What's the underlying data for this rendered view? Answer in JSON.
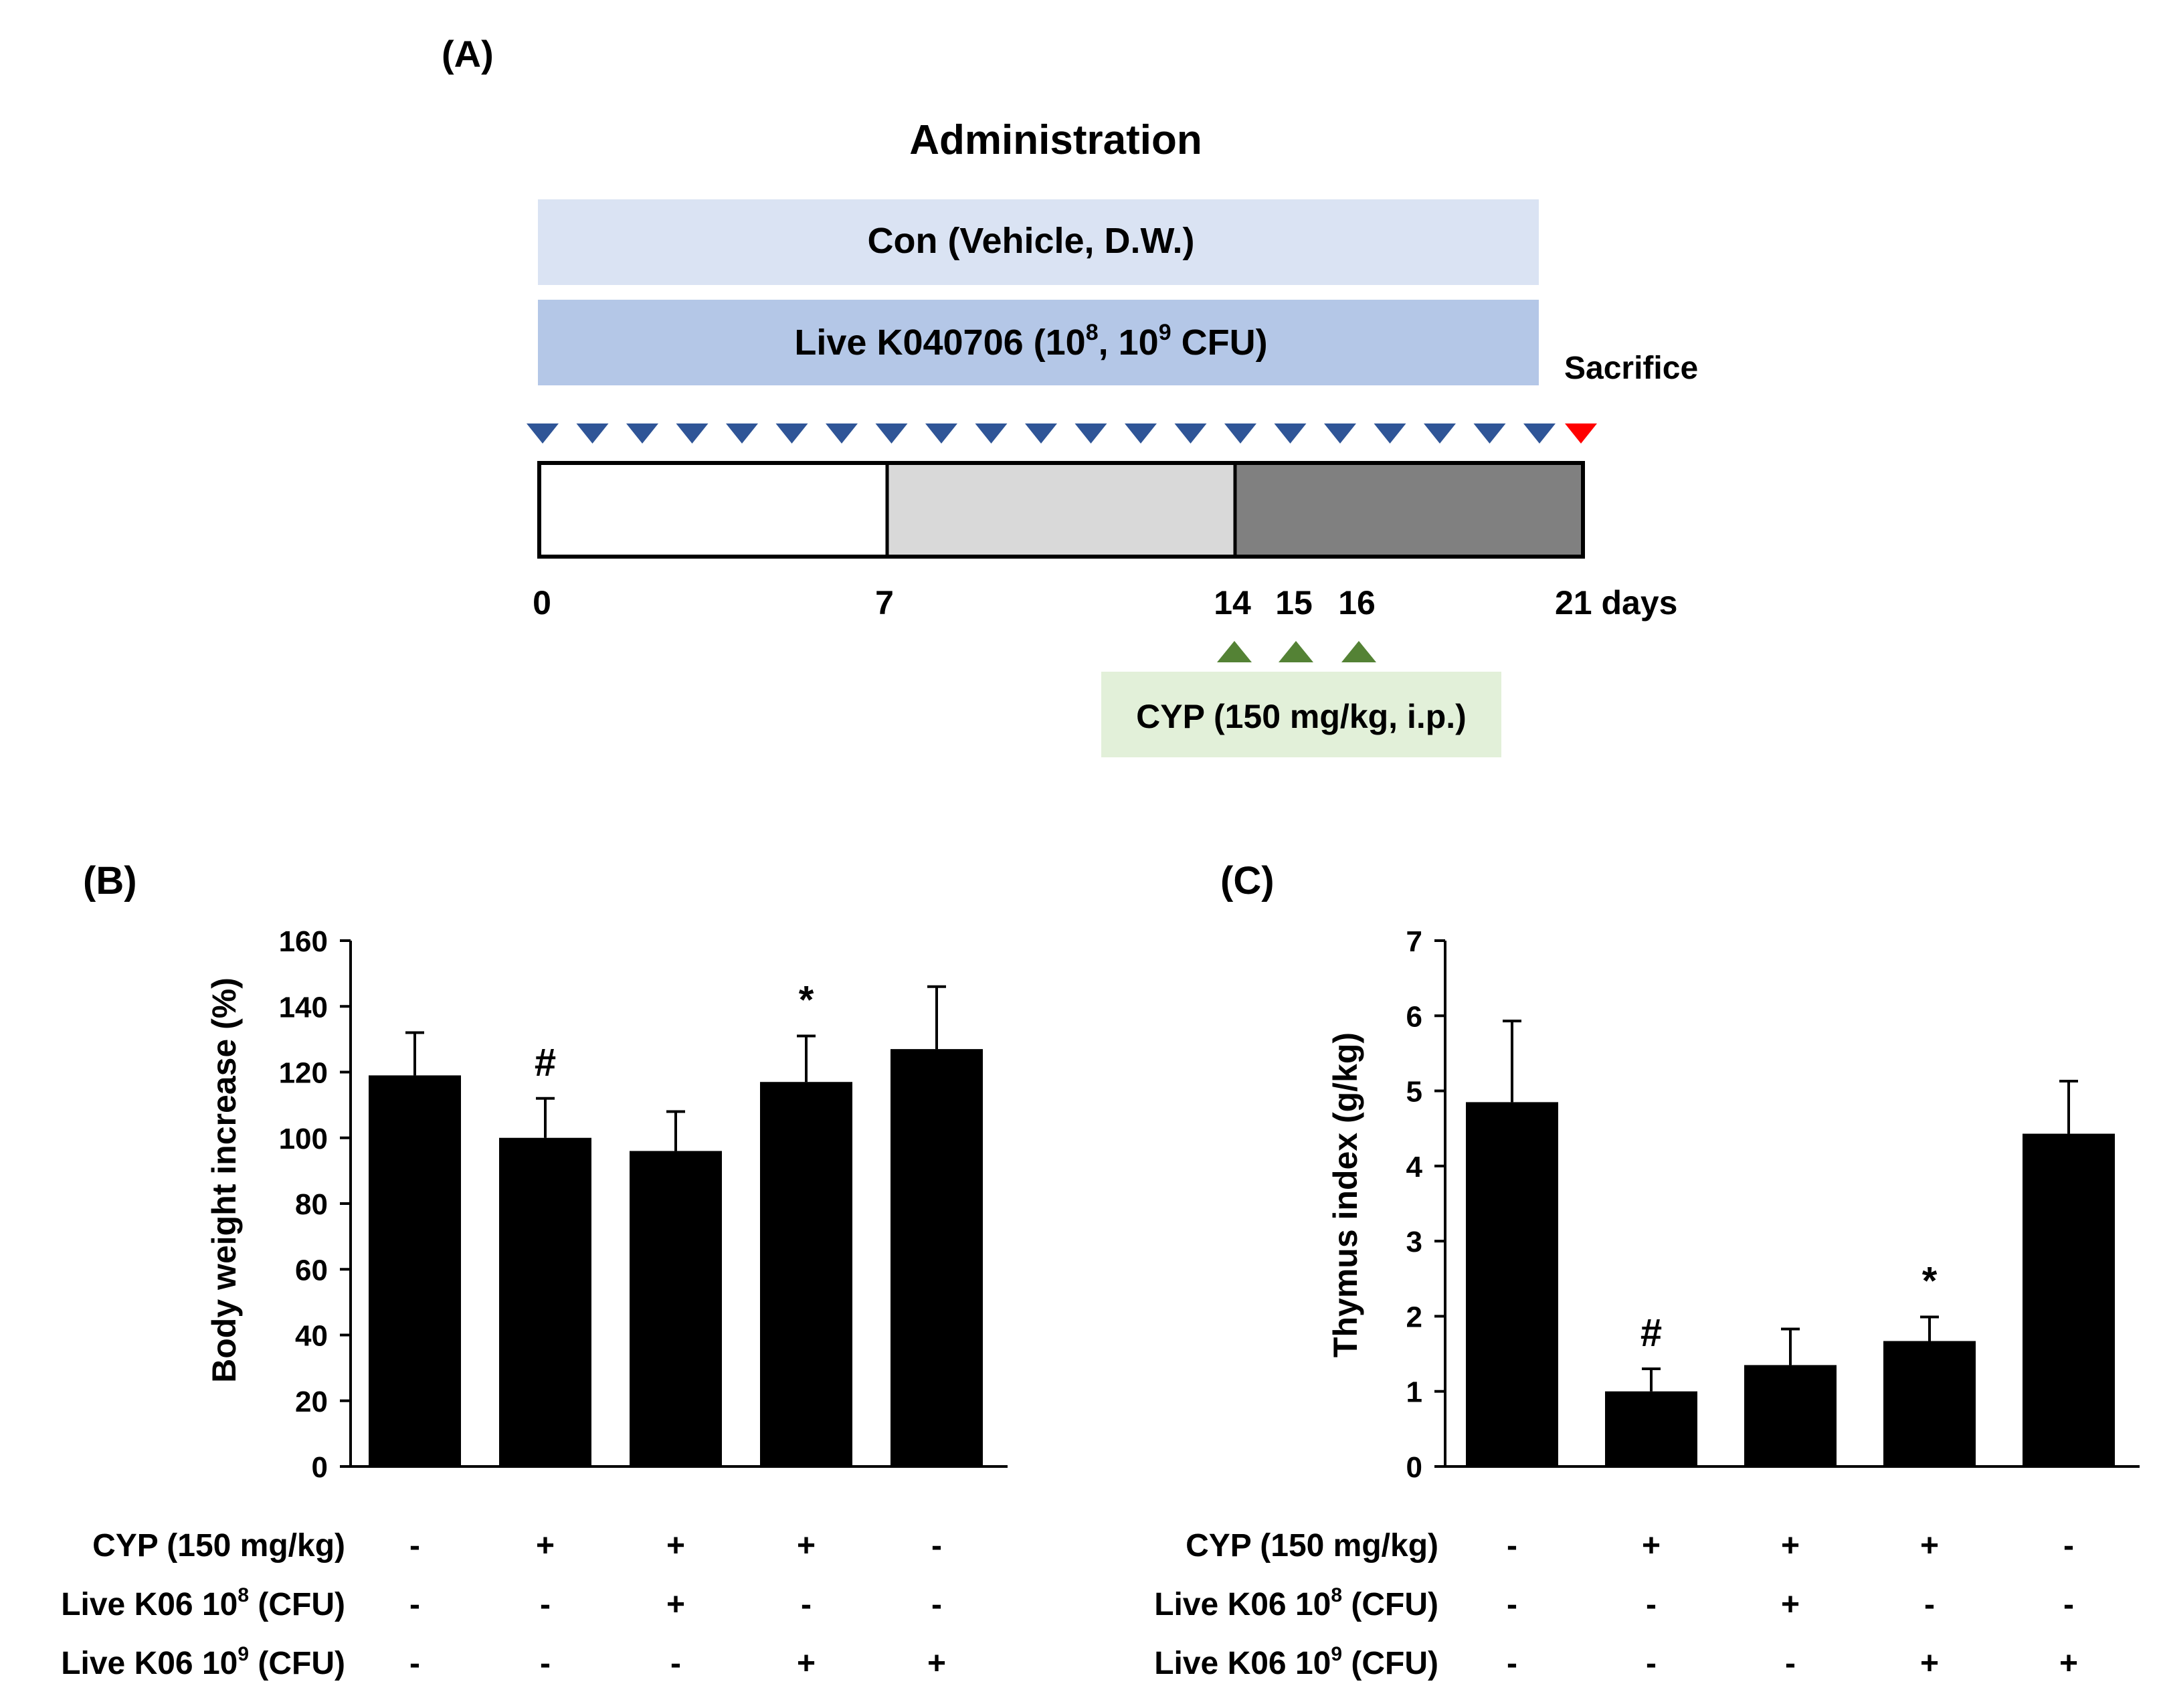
{
  "panel_a": {
    "label": "(A)",
    "title": "Administration",
    "con_label": "Con (Vehicle,  D.W.)",
    "live_label": "Live K040706 (10",
    "live_exp1": "8",
    "live_mid": ", 10",
    "live_exp2": "9",
    "live_end": " CFU)",
    "sacrifice": "Sacrifice",
    "day_ticks": [
      "0",
      "7",
      "14",
      "15",
      "16",
      "21 days"
    ],
    "dose_markers_count": 21,
    "phase_colors": [
      "#ffffff",
      "#d9d9d9",
      "#808080"
    ],
    "cyp_label": "CYP (150 mg/kg, i.p.)",
    "colors": {
      "con_box": "#dae3f3",
      "live_box": "#b4c7e7",
      "dose_marker": "#2f5597",
      "sacrifice_marker": "#ff0000",
      "cyp_marker": "#548235",
      "cyp_box": "#e2f0d9"
    }
  },
  "row_labels": {
    "cyp": "CYP (150 mg/kg)",
    "k06_1e8_pre": "Live K06 10",
    "k06_1e8_exp": "8",
    "k06_1e8_post": " (CFU)",
    "k06_1e9_pre": "Live K06 10",
    "k06_1e9_exp": "9",
    "k06_1e9_post": " (CFU)"
  },
  "chart_data": [
    {
      "panel": "(B)",
      "type": "bar",
      "ylabel": "Body weight increase (%)",
      "ylim": [
        0,
        160
      ],
      "yticks": [
        "0",
        "20",
        "40",
        "60",
        "80",
        "100",
        "120",
        "140",
        "160"
      ],
      "groups": 5,
      "values": [
        119,
        100,
        96,
        117,
        127
      ],
      "errors": [
        13,
        12,
        12,
        14,
        19
      ],
      "annotations": [
        "",
        "#",
        "",
        "*",
        ""
      ],
      "treatment_table": {
        "cyp": [
          "-",
          "+",
          "+",
          "+",
          "-"
        ],
        "k06_1e8": [
          "-",
          "-",
          "+",
          "-",
          "-"
        ],
        "k06_1e9": [
          "-",
          "-",
          "-",
          "+",
          "+"
        ]
      }
    },
    {
      "panel": "(C)",
      "type": "bar",
      "ylabel": "Thymus index (g/kg)",
      "ylim": [
        0,
        7
      ],
      "yticks": [
        "0",
        "1",
        "2",
        "3",
        "4",
        "5",
        "6",
        "7"
      ],
      "groups": 5,
      "values": [
        4.85,
        1.0,
        1.35,
        1.67,
        4.43
      ],
      "errors": [
        1.08,
        0.3,
        0.48,
        0.32,
        0.7
      ],
      "annotations": [
        "",
        "#",
        "",
        "*",
        ""
      ],
      "treatment_table": {
        "cyp": [
          "-",
          "+",
          "+",
          "+",
          "-"
        ],
        "k06_1e8": [
          "-",
          "-",
          "+",
          "-",
          "-"
        ],
        "k06_1e9": [
          "-",
          "-",
          "-",
          "+",
          "+"
        ]
      }
    }
  ]
}
